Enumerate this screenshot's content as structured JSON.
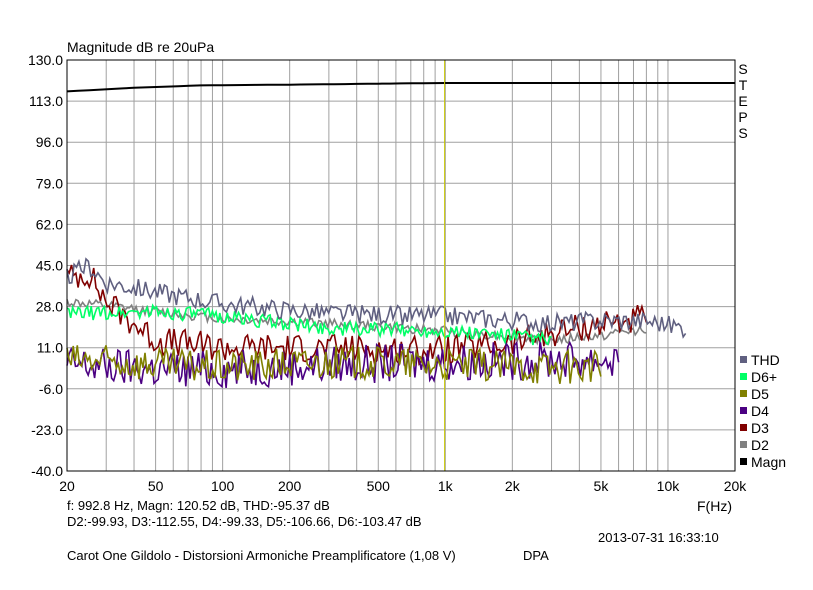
{
  "chart_data": {
    "type": "line",
    "title": "Magnitude dB re 20uPa",
    "xlabel": "F(Hz)",
    "ylabel": "",
    "x_scale": "log",
    "xlim": [
      20,
      20000
    ],
    "ylim": [
      -40,
      130
    ],
    "x_ticks": [
      {
        "v": 20,
        "label": "20"
      },
      {
        "v": 50,
        "label": "50"
      },
      {
        "v": 100,
        "label": "100"
      },
      {
        "v": 200,
        "label": "200"
      },
      {
        "v": 500,
        "label": "500"
      },
      {
        "v": 1000,
        "label": "1k"
      },
      {
        "v": 2000,
        "label": "2k"
      },
      {
        "v": 5000,
        "label": "5k"
      },
      {
        "v": 10000,
        "label": "10k"
      },
      {
        "v": 20000,
        "label": "20k"
      }
    ],
    "y_ticks": [
      {
        "v": 130,
        "label": "130.0"
      },
      {
        "v": 113,
        "label": "113.0"
      },
      {
        "v": 96,
        "label": "96.0"
      },
      {
        "v": 79,
        "label": "79.0"
      },
      {
        "v": 62,
        "label": "62.0"
      },
      {
        "v": 45,
        "label": "45.0"
      },
      {
        "v": 28,
        "label": "28.0"
      },
      {
        "v": 11,
        "label": "11.0"
      },
      {
        "v": -6,
        "label": "-6.0"
      },
      {
        "v": -23,
        "label": "-23.0"
      },
      {
        "v": -40,
        "label": "-40.0"
      }
    ],
    "grid": true,
    "cursor_hz": 992.8,
    "side_label": "STEPS",
    "legend_position": "right",
    "series": [
      {
        "name": "Magn",
        "color": "#000000",
        "noise": 0,
        "seed": 0,
        "points": [
          [
            20,
            117
          ],
          [
            40,
            118.5
          ],
          [
            80,
            119.5
          ],
          [
            200,
            119.8
          ],
          [
            1000,
            120.5
          ],
          [
            5000,
            120.5
          ],
          [
            20000,
            120.5
          ]
        ]
      },
      {
        "name": "D2",
        "color": "#808080",
        "noise": 2,
        "seed": 11,
        "points": [
          [
            20,
            30
          ],
          [
            50,
            26
          ],
          [
            100,
            23
          ],
          [
            300,
            21
          ],
          [
            1000,
            18
          ],
          [
            3000,
            14
          ],
          [
            5000,
            16
          ],
          [
            7000,
            18
          ],
          [
            8000,
            19
          ]
        ]
      },
      {
        "name": "D3",
        "color": "#800000",
        "noise": 6,
        "seed": 23,
        "points": [
          [
            20,
            40
          ],
          [
            25,
            42
          ],
          [
            30,
            30
          ],
          [
            50,
            14
          ],
          [
            100,
            11
          ],
          [
            200,
            11
          ],
          [
            1000,
            10
          ],
          [
            2000,
            13
          ],
          [
            3000,
            17
          ],
          [
            5000,
            21
          ],
          [
            8000,
            23
          ]
        ]
      },
      {
        "name": "D4",
        "color": "#4b0082",
        "noise": 8,
        "seed": 37,
        "points": [
          [
            20,
            4
          ],
          [
            50,
            2
          ],
          [
            100,
            2
          ],
          [
            300,
            4
          ],
          [
            1000,
            5
          ],
          [
            3000,
            6
          ],
          [
            5000,
            6
          ],
          [
            6000,
            6
          ]
        ]
      },
      {
        "name": "D5",
        "color": "#808000",
        "noise": 7,
        "seed": 53,
        "points": [
          [
            20,
            6
          ],
          [
            50,
            4
          ],
          [
            100,
            3
          ],
          [
            300,
            5
          ],
          [
            1000,
            4
          ],
          [
            3000,
            3
          ],
          [
            5000,
            3
          ]
        ]
      },
      {
        "name": "D6+",
        "color": "#00ff66",
        "noise": 3,
        "seed": 71,
        "points": [
          [
            20,
            25
          ],
          [
            50,
            26
          ],
          [
            100,
            24
          ],
          [
            300,
            19
          ],
          [
            1000,
            18
          ],
          [
            2000,
            16
          ],
          [
            3000,
            14
          ]
        ]
      },
      {
        "name": "THD",
        "color": "#606080",
        "noise": 4,
        "seed": 89,
        "points": [
          [
            20,
            40
          ],
          [
            25,
            45
          ],
          [
            30,
            38
          ],
          [
            50,
            34
          ],
          [
            100,
            29
          ],
          [
            300,
            25
          ],
          [
            1000,
            24
          ],
          [
            3000,
            21
          ],
          [
            5000,
            22
          ],
          [
            8000,
            22
          ],
          [
            12000,
            19
          ]
        ]
      }
    ],
    "legend_order": [
      "THD",
      "D6+",
      "D5",
      "D4",
      "D3",
      "D2",
      "Magn"
    ]
  },
  "readout": {
    "line1": "f:  992.8 Hz, Magn: 120.52 dB, THD:-95.37  dB",
    "line2": "D2:-99.93, D3:-112.55, D4:-99.33, D5:-106.66, D6:-103.47 dB",
    "timestamp": "2013-07-31 16:33:10",
    "caption": "Carot One Gildolo - Distorsioni Armoniche Preamplificatore (1,08 V)",
    "app_label": "DPA"
  }
}
